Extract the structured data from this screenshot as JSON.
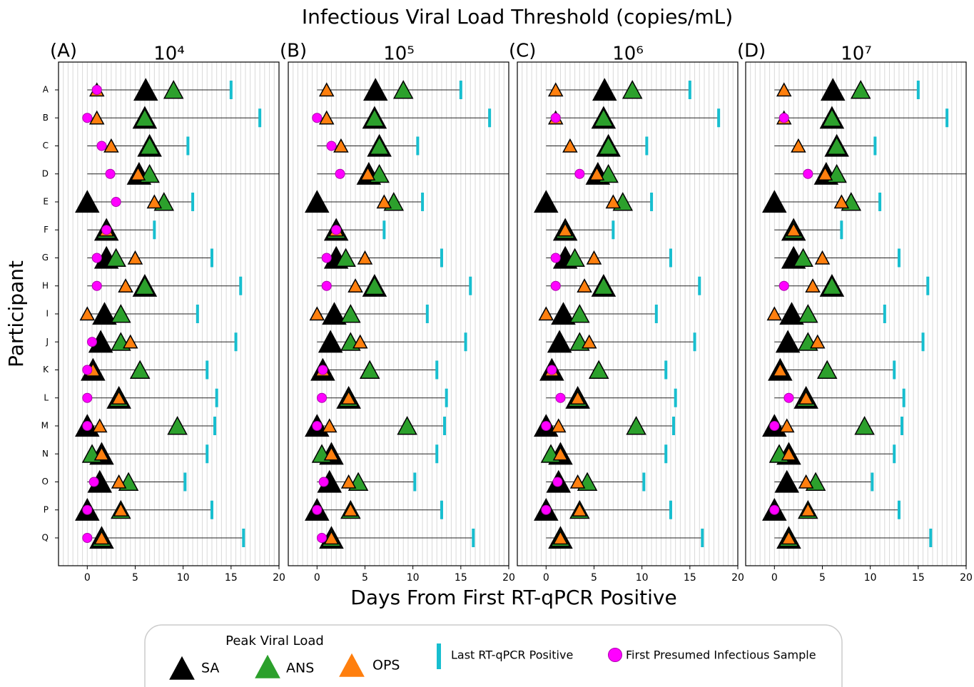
{
  "figure": {
    "title": "Infectious Viral Load Threshold (copies/mL)",
    "xlabel": "Days From First RT-qPCR Positive",
    "ylabel": "Participant"
  },
  "chart_data": [
    {
      "type": "range-dot",
      "panel_label": "(A)",
      "title": "10⁴",
      "legend_title": "Peak Viral Load",
      "categories": [
        "A",
        "B",
        "C",
        "D",
        "E",
        "F",
        "G",
        "H",
        "I",
        "J",
        "K",
        "L",
        "M",
        "N",
        "O",
        "P",
        "Q"
      ],
      "xlim": [
        -3,
        20
      ],
      "xticks": [
        0,
        5,
        10,
        15,
        20
      ],
      "minor_grid": 0.5,
      "series": [
        {
          "name": "SA",
          "color": "#000000",
          "marker": "triangle",
          "values": [
            6.1,
            6,
            6.5,
            5.4,
            0,
            2,
            2,
            6,
            1.8,
            1.4,
            0.6,
            3.3,
            0,
            1.5,
            1.3,
            0,
            1.5
          ]
        },
        {
          "name": "ANS",
          "color": "#2ca02c",
          "marker": "triangle",
          "values": [
            9,
            6,
            6.5,
            6.5,
            8,
            2,
            3,
            6,
            3.5,
            3.5,
            5.5,
            3.3,
            9.4,
            0.5,
            4.3,
            3.5,
            1.5
          ]
        },
        {
          "name": "OPS",
          "color": "#ff7f0e",
          "marker": "triangle",
          "values": [
            1,
            1,
            2.5,
            5.3,
            7,
            2,
            5,
            4,
            0,
            4.5,
            0.6,
            3.3,
            1.3,
            1.5,
            3.3,
            3.5,
            1.5
          ]
        },
        {
          "name": "Last RT-qPCR Positive",
          "color": "#17becf",
          "marker": "vbar",
          "values": [
            15,
            18,
            10.5,
            22,
            11,
            7,
            13,
            16,
            11.5,
            15.5,
            12.5,
            13.5,
            13.3,
            12.5,
            10.2,
            13,
            16.3
          ]
        },
        {
          "name": "First Presumed Infectious Sample",
          "color": "#ff00ff",
          "marker": "circle",
          "values": [
            1,
            0,
            1.5,
            2.4,
            3,
            2,
            1,
            1,
            null,
            0.5,
            0,
            0,
            0,
            null,
            0.7,
            0,
            0
          ]
        }
      ]
    },
    {
      "type": "range-dot",
      "panel_label": "(B)",
      "title": "10⁵",
      "xlim": [
        -3,
        20
      ],
      "xticks": [
        0,
        5,
        10,
        15,
        20
      ],
      "minor_grid": 0.5,
      "series": [
        {
          "color": "#000000",
          "marker": "triangle",
          "values": [
            6.1,
            6,
            6.5,
            5.4,
            0,
            2,
            2,
            6,
            1.8,
            1.4,
            0.6,
            3.3,
            0,
            1.5,
            1.3,
            0,
            1.5
          ]
        },
        {
          "color": "#2ca02c",
          "marker": "triangle",
          "values": [
            9,
            6,
            6.5,
            6.5,
            8,
            2,
            3,
            6,
            3.5,
            3.5,
            5.5,
            3.3,
            9.4,
            0.5,
            4.3,
            3.5,
            1.5
          ]
        },
        {
          "color": "#ff7f0e",
          "marker": "triangle",
          "values": [
            1,
            1,
            2.5,
            5.3,
            7,
            2,
            5,
            4,
            0,
            4.5,
            0.6,
            3.3,
            1.3,
            1.5,
            3.3,
            3.5,
            1.5
          ]
        },
        {
          "color": "#17becf",
          "marker": "vbar",
          "values": [
            15,
            18,
            10.5,
            22,
            11,
            7,
            13,
            16,
            11.5,
            15.5,
            12.5,
            13.5,
            13.3,
            12.5,
            10.2,
            13,
            16.3
          ]
        },
        {
          "color": "#ff00ff",
          "marker": "circle",
          "values": [
            null,
            0,
            1.5,
            2.4,
            null,
            2,
            1,
            1,
            null,
            null,
            0.6,
            0.5,
            0,
            null,
            0.7,
            0,
            0.5
          ]
        }
      ]
    },
    {
      "type": "range-dot",
      "panel_label": "(C)",
      "title": "10⁶",
      "xlim": [
        -3,
        20
      ],
      "xticks": [
        0,
        5,
        10,
        15,
        20
      ],
      "minor_grid": 0.5,
      "series": [
        {
          "color": "#000000",
          "marker": "triangle",
          "values": [
            6.1,
            6,
            6.5,
            5.4,
            0,
            2,
            2,
            6,
            1.8,
            1.4,
            0.6,
            3.3,
            0,
            1.5,
            1.3,
            0,
            1.5
          ]
        },
        {
          "color": "#2ca02c",
          "marker": "triangle",
          "values": [
            9,
            6,
            6.5,
            6.5,
            8,
            2,
            3,
            6,
            3.5,
            3.5,
            5.5,
            3.3,
            9.4,
            0.5,
            4.3,
            3.5,
            1.5
          ]
        },
        {
          "color": "#ff7f0e",
          "marker": "triangle",
          "values": [
            1,
            1,
            2.5,
            5.3,
            7,
            2,
            5,
            4,
            0,
            4.5,
            0.6,
            3.3,
            1.3,
            1.5,
            3.3,
            3.5,
            1.5
          ]
        },
        {
          "color": "#17becf",
          "marker": "vbar",
          "values": [
            15,
            18,
            10.5,
            22,
            11,
            7,
            13,
            16,
            11.5,
            15.5,
            12.5,
            13.5,
            13.3,
            12.5,
            10.2,
            13,
            16.3
          ]
        },
        {
          "color": "#ff00ff",
          "marker": "circle",
          "values": [
            null,
            1,
            null,
            3.5,
            null,
            null,
            1,
            1,
            null,
            null,
            0.6,
            1.5,
            0,
            null,
            1.2,
            0,
            null
          ]
        }
      ]
    },
    {
      "type": "range-dot",
      "panel_label": "(D)",
      "title": "10⁷",
      "xlim": [
        -3,
        20
      ],
      "xticks": [
        0,
        5,
        10,
        15,
        20
      ],
      "minor_grid": 0.5,
      "series": [
        {
          "color": "#000000",
          "marker": "triangle",
          "values": [
            6.1,
            6,
            6.5,
            5.4,
            0,
            2,
            2,
            6,
            1.8,
            1.4,
            0.6,
            3.3,
            0,
            1.5,
            1.3,
            0,
            1.5
          ]
        },
        {
          "color": "#2ca02c",
          "marker": "triangle",
          "values": [
            9,
            6,
            6.5,
            6.5,
            8,
            2,
            3,
            6,
            3.5,
            3.5,
            5.5,
            3.3,
            9.4,
            0.5,
            4.3,
            3.5,
            1.5
          ]
        },
        {
          "color": "#ff7f0e",
          "marker": "triangle",
          "values": [
            1,
            1,
            2.5,
            5.3,
            7,
            2,
            5,
            4,
            0,
            4.5,
            0.6,
            3.3,
            1.3,
            1.5,
            3.3,
            3.5,
            1.5
          ]
        },
        {
          "color": "#17becf",
          "marker": "vbar",
          "values": [
            15,
            18,
            10.5,
            22,
            11,
            7,
            13,
            16,
            11.5,
            15.5,
            12.5,
            13.5,
            13.3,
            12.5,
            10.2,
            13,
            16.3
          ]
        },
        {
          "color": "#ff00ff",
          "marker": "circle",
          "values": [
            null,
            1,
            null,
            3.5,
            null,
            null,
            null,
            1,
            null,
            null,
            null,
            1.5,
            0,
            null,
            null,
            0,
            null
          ]
        }
      ]
    }
  ]
}
